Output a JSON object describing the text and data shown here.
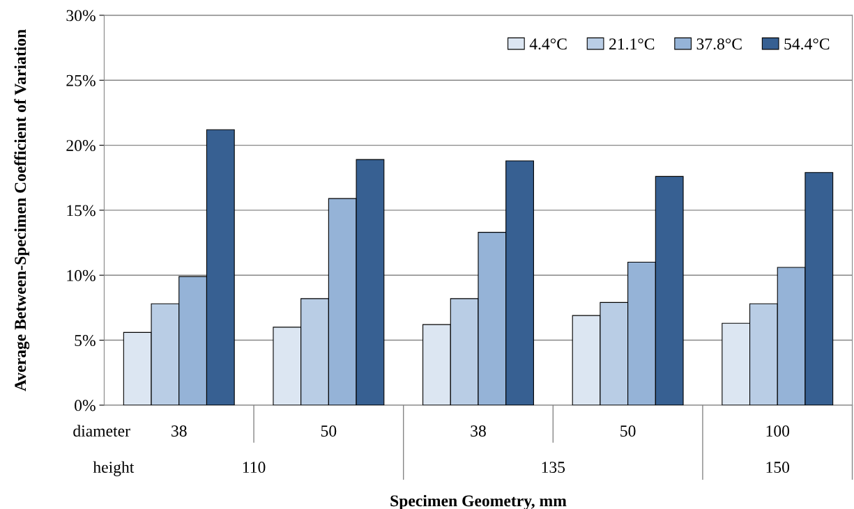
{
  "chart_data": {
    "type": "bar",
    "ylabel": "Average Between-Specimen Coefficient of Variation",
    "xlabel": "Specimen Geometry, mm",
    "categories": [
      "38",
      "50",
      "38",
      "50",
      "100"
    ],
    "series": [
      {
        "name": "4.4°C",
        "color": "#dce6f2",
        "values": [
          5.6,
          6.0,
          6.2,
          6.9,
          6.3
        ]
      },
      {
        "name": "21.1°C",
        "color": "#b9cde5",
        "values": [
          7.8,
          8.2,
          8.2,
          7.9,
          7.8
        ]
      },
      {
        "name": "37.8°C",
        "color": "#95b3d7",
        "values": [
          9.9,
          15.9,
          13.3,
          11.0,
          10.6
        ]
      },
      {
        "name": "54.4°C",
        "color": "#376092",
        "values": [
          21.2,
          18.9,
          18.8,
          17.6,
          17.9
        ]
      }
    ],
    "ylim": [
      0,
      30
    ],
    "yticks": [
      {
        "value": 0,
        "label": "0%"
      },
      {
        "value": 5,
        "label": "5%"
      },
      {
        "value": 10,
        "label": "10%"
      },
      {
        "value": 15,
        "label": "15%"
      },
      {
        "value": 20,
        "label": "20%"
      },
      {
        "value": 25,
        "label": "25%"
      },
      {
        "value": 30,
        "label": "30%"
      }
    ],
    "grid": "y",
    "legend": "top right",
    "annotations": [
      "diameter",
      "height",
      "110",
      "135",
      "150"
    ]
  }
}
